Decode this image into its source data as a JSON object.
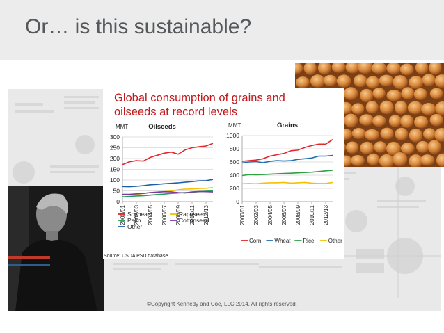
{
  "slide": {
    "title": "Or… is this sustainable?",
    "copyright": "©Copyright Kennedy and Coe, LLC 2014. All rights reserved."
  },
  "chart_panel": {
    "title_lines": [
      "Global consumption of grains and",
      "oilseeds at record levels"
    ],
    "source": "Source: USDA PSD database"
  },
  "colors": {
    "soybean": "#e3262b",
    "rapeseed": "#f2c200",
    "palm": "#24a05a",
    "cottonseed": "#7c3c9c",
    "other_oilseed": "#1f5fa8",
    "corn": "#e3262b",
    "wheat": "#1f6db0",
    "rice": "#2ea043",
    "other_grain": "#f2c200"
  },
  "chart_data": [
    {
      "type": "line",
      "title": "Oilseeds",
      "ylabel": "MMT",
      "ylim": [
        0,
        300
      ],
      "yticks": [
        0,
        50,
        100,
        150,
        200,
        250,
        300
      ],
      "x": [
        "2000/01",
        "2001/02",
        "2002/03",
        "2003/04",
        "2004/05",
        "2005/06",
        "2006/07",
        "2007/08",
        "2008/09",
        "2009/10",
        "2010/11",
        "2011/12",
        "2012/13",
        "2013/14"
      ],
      "xticks": [
        "2000/01",
        "2002/03",
        "2004/05",
        "2006/07",
        "2008/09",
        "2010/11",
        "2012/13"
      ],
      "grid": true,
      "legend": "bottom",
      "series": [
        {
          "name": "Soybean",
          "color": "#e3262b",
          "values": [
            172,
            185,
            190,
            188,
            205,
            215,
            225,
            230,
            220,
            240,
            250,
            255,
            258,
            270
          ]
        },
        {
          "name": "Rapeseed",
          "color": "#f2c200",
          "values": [
            35,
            34,
            33,
            38,
            42,
            45,
            46,
            49,
            55,
            58,
            59,
            61,
            62,
            65
          ]
        },
        {
          "name": "Palm",
          "color": "#24a05a",
          "values": [
            22,
            24,
            26,
            27,
            30,
            33,
            35,
            38,
            40,
            42,
            44,
            46,
            48,
            50
          ]
        },
        {
          "name": "Cottonseed",
          "color": "#7c3c9c",
          "values": [
            33,
            34,
            36,
            38,
            42,
            44,
            46,
            45,
            42,
            40,
            45,
            47,
            46,
            45
          ]
        },
        {
          "name": "Other",
          "color": "#1f5fa8",
          "values": [
            70,
            69,
            71,
            74,
            78,
            80,
            83,
            85,
            87,
            90,
            93,
            96,
            97,
            103
          ]
        }
      ]
    },
    {
      "type": "line",
      "title": "Grains",
      "ylabel": "MMT",
      "ylim": [
        0,
        1000
      ],
      "yticks": [
        0,
        200,
        400,
        600,
        800,
        1000
      ],
      "x": [
        "2000/01",
        "2001/02",
        "2002/03",
        "2003/04",
        "2004/05",
        "2005/06",
        "2006/07",
        "2007/08",
        "2008/09",
        "2009/10",
        "2010/11",
        "2011/12",
        "2012/13",
        "2013/14"
      ],
      "xticks": [
        "2000/01",
        "2002/03",
        "2004/05",
        "2006/07",
        "2008/09",
        "2010/11",
        "2012/13"
      ],
      "grid": true,
      "legend": "bottom",
      "series": [
        {
          "name": "Corn",
          "color": "#e3262b",
          "values": [
            610,
            620,
            630,
            650,
            690,
            710,
            730,
            770,
            780,
            820,
            850,
            870,
            870,
            940
          ]
        },
        {
          "name": "Wheat",
          "color": "#1f6db0",
          "values": [
            585,
            600,
            605,
            590,
            610,
            620,
            615,
            620,
            640,
            650,
            660,
            690,
            690,
            700
          ]
        },
        {
          "name": "Rice",
          "color": "#2ea043",
          "values": [
            395,
            410,
            405,
            410,
            415,
            420,
            425,
            430,
            435,
            440,
            445,
            455,
            465,
            475
          ]
        },
        {
          "name": "Other",
          "color": "#f2c200",
          "values": [
            270,
            275,
            270,
            280,
            285,
            285,
            290,
            280,
            285,
            290,
            280,
            275,
            275,
            290
          ]
        }
      ]
    }
  ]
}
